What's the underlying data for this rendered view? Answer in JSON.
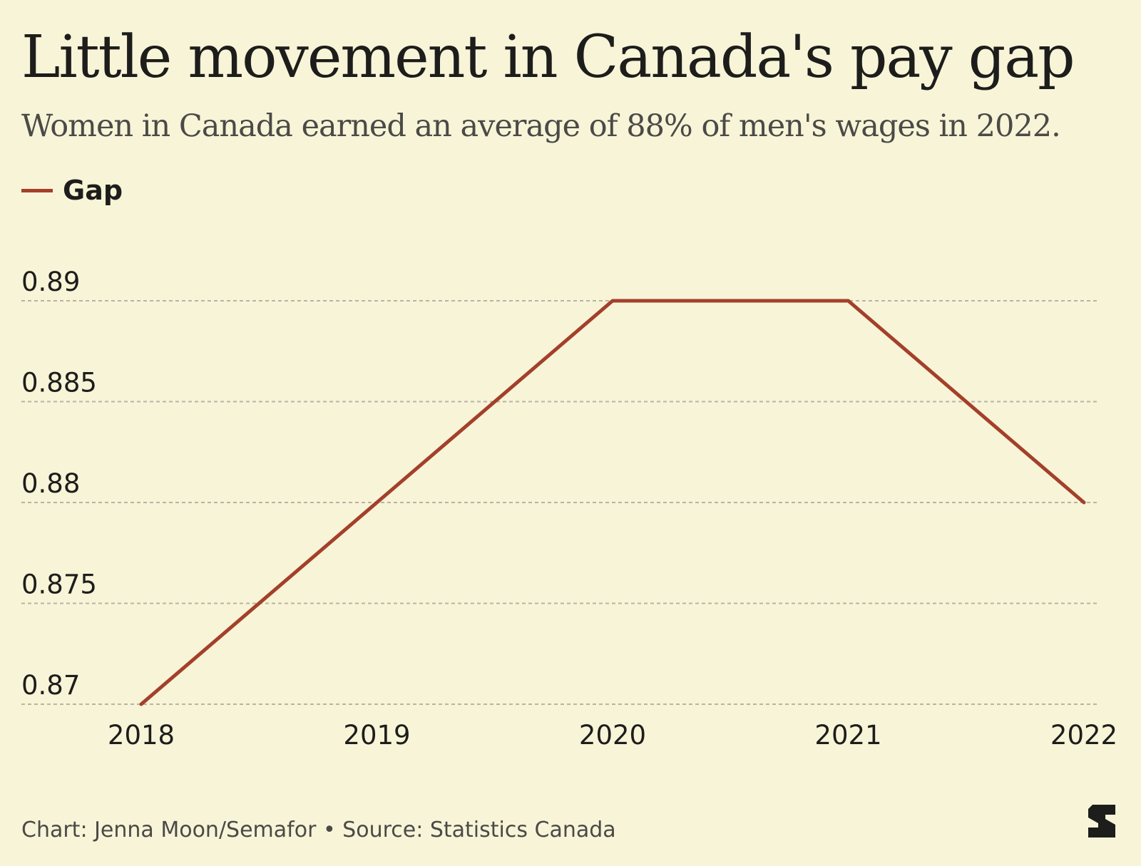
{
  "header": {
    "title": "Little movement in Canada's pay gap",
    "subtitle": "Women in Canada earned an average of 88% of men's wages in 2022."
  },
  "footer": {
    "source": "Chart: Jenna Moon/Semafor • Source: Statistics Canada",
    "logo_icon": "semafor-logo-icon"
  },
  "colors": {
    "background": "#f8f4d8",
    "series": "#a3402a",
    "grid": "#b7b4a4"
  },
  "chart_data": {
    "type": "line",
    "title": "Little movement in Canada's pay gap",
    "subtitle": "Women in Canada earned an average of 88% of men's wages in 2022.",
    "xlabel": "",
    "ylabel": "",
    "x": [
      "2018",
      "2019",
      "2020",
      "2021",
      "2022"
    ],
    "series": [
      {
        "name": "Gap",
        "values": [
          0.87,
          0.88,
          0.89,
          0.89,
          0.88
        ]
      }
    ],
    "yticks": [
      "0.87",
      "0.875",
      "0.88",
      "0.885",
      "0.89"
    ],
    "ylim": [
      0.87,
      0.89
    ],
    "grid": true,
    "legend": "top-left"
  }
}
